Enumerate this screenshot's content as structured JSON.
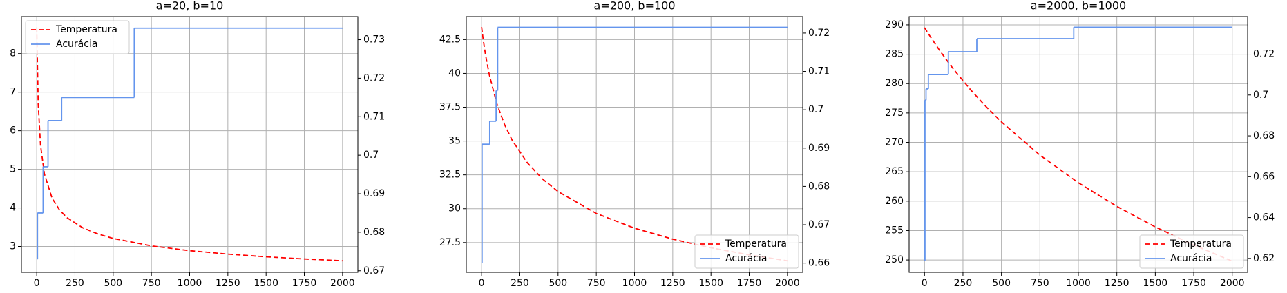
{
  "chart_data": [
    {
      "type": "line",
      "title": "a=20, b=10",
      "legend": "upper left",
      "grid": true,
      "xlim": [
        -100,
        2100
      ],
      "xticks": [
        0,
        250,
        500,
        750,
        1000,
        1250,
        1500,
        1750,
        2000
      ],
      "ylim": [
        2.33,
        8.96
      ],
      "yticks": [
        3,
        4,
        5,
        6,
        7,
        8
      ],
      "y2lim": [
        0.6696,
        0.736
      ],
      "y2ticks": [
        0.67,
        0.68,
        0.69,
        0.7,
        0.71,
        0.72,
        0.73
      ],
      "series": [
        {
          "name": "Temperatura",
          "color": "#ff0000",
          "linestyle": "dashed",
          "x": [
            0,
            10,
            25,
            50,
            100,
            150,
            200,
            300,
            400,
            500,
            750,
            1000,
            1250,
            1500,
            1750,
            2000
          ],
          "values": [
            8.686,
            6.676,
            5.625,
            4.885,
            4.255,
            3.941,
            3.74,
            3.486,
            3.324,
            3.208,
            3.015,
            2.891,
            2.802,
            2.732,
            2.676,
            2.63
          ]
        },
        {
          "name": "Acurácia",
          "color": "#6495ed",
          "linestyle": "solid",
          "drawstyle": "steps-post",
          "axis": "y2",
          "x": [
            0,
            5,
            42,
            74,
            163,
            638,
            2000
          ],
          "values": [
            0.673,
            0.685,
            0.697,
            0.709,
            0.715,
            0.733,
            0.733
          ]
        }
      ]
    },
    {
      "type": "line",
      "title": "a=200, b=100",
      "legend": "lower right",
      "grid": true,
      "xlim": [
        -100,
        2100
      ],
      "xticks": [
        0,
        250,
        500,
        750,
        1000,
        1250,
        1500,
        1750,
        2000
      ],
      "ylim": [
        25.3,
        44.2
      ],
      "yticks": [
        27.5,
        30.0,
        32.5,
        35.0,
        37.5,
        40.0,
        42.5
      ],
      "y2lim": [
        0.6576,
        0.7243
      ],
      "y2ticks": [
        0.66,
        0.67,
        0.68,
        0.69,
        0.7,
        0.71,
        0.72
      ],
      "series": [
        {
          "name": "Temperatura",
          "color": "#ff0000",
          "linestyle": "dashed",
          "x": [
            0,
            10,
            25,
            50,
            100,
            150,
            200,
            300,
            400,
            500,
            750,
            1000,
            1250,
            1500,
            1750,
            2000
          ],
          "values": [
            43.43,
            42.55,
            41.42,
            39.92,
            37.75,
            36.22,
            35.06,
            33.38,
            32.18,
            31.27,
            29.65,
            28.56,
            27.75,
            27.11,
            26.59,
            26.15
          ]
        },
        {
          "name": "Acurácia",
          "color": "#6495ed",
          "linestyle": "solid",
          "drawstyle": "steps-post",
          "axis": "y2",
          "x": [
            0,
            3,
            53,
            95,
            105,
            2000
          ],
          "values": [
            0.66,
            0.691,
            0.697,
            0.705,
            0.7215,
            0.7215
          ]
        }
      ]
    },
    {
      "type": "line",
      "title": "a=2000, b=1000",
      "legend": "lower right",
      "grid": true,
      "xlim": [
        -100,
        2100
      ],
      "xticks": [
        0,
        250,
        500,
        750,
        1000,
        1250,
        1500,
        1750,
        2000
      ],
      "ylim": [
        247.9,
        291.4
      ],
      "yticks": [
        250,
        255,
        260,
        265,
        270,
        275,
        280,
        285,
        290
      ],
      "y2lim": [
        0.6132,
        0.7384
      ],
      "y2ticks": [
        0.62,
        0.64,
        0.66,
        0.68,
        0.7,
        0.72
      ],
      "series": [
        {
          "name": "Temperatura",
          "color": "#ff0000",
          "linestyle": "dashed",
          "x": [
            0,
            10,
            25,
            50,
            100,
            150,
            200,
            300,
            400,
            500,
            750,
            1000,
            1250,
            1500,
            1750,
            2000
          ],
          "values": [
            289.53,
            289.11,
            288.5,
            287.5,
            285.59,
            283.79,
            282.08,
            278.94,
            276.08,
            273.48,
            267.83,
            263.13,
            259.11,
            255.62,
            252.54,
            249.8
          ]
        },
        {
          "name": "Acurácia",
          "color": "#6495ed",
          "linestyle": "solid",
          "drawstyle": "steps-post",
          "axis": "y2",
          "x": [
            0,
            3,
            10,
            25,
            155,
            340,
            970,
            2000
          ],
          "values": [
            0.619,
            0.6975,
            0.703,
            0.71,
            0.7212,
            0.7276,
            0.7332,
            0.7332
          ]
        }
      ]
    }
  ]
}
